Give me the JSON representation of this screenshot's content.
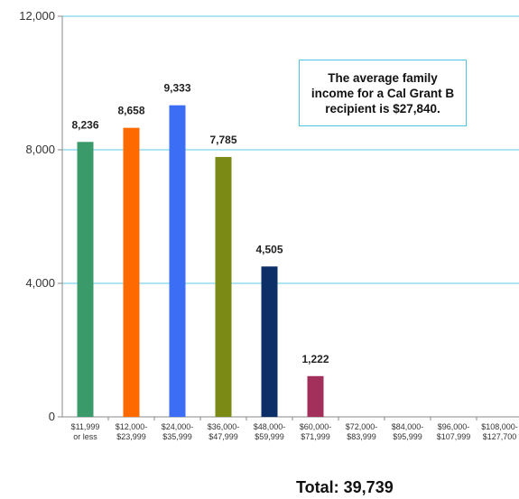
{
  "chart_data": {
    "type": "bar",
    "categories": [
      "$11,999\nor less",
      "$12,000-\n$23,999",
      "$24,000-\n$35,999",
      "$36,000-\n$47,999",
      "$48,000-\n$59,999",
      "$60,000-\n$71,999",
      "$72,000-\n$83,999",
      "$84,000-\n$95,999",
      "$96,000-\n$107,999",
      "$108,000-\n$127,700"
    ],
    "values": [
      8236,
      8658,
      9333,
      7785,
      4505,
      1222,
      0,
      0,
      0,
      0
    ],
    "data_labels": [
      "8,236",
      "8,658",
      "9,333",
      "7,785",
      "4,505",
      "1,222",
      "",
      "",
      "",
      ""
    ],
    "colors": [
      "#3a9a6a",
      "#ff6a00",
      "#3b6ef5",
      "#7a8a14",
      "#0b2f66",
      "#a2305a",
      "#cccccc",
      "#cccccc",
      "#cccccc",
      "#cccccc"
    ],
    "ylim": [
      0,
      12000
    ],
    "yticks": [
      0,
      4000,
      8000,
      12000
    ],
    "ytick_labels": [
      "0",
      "4,000",
      "8,000",
      "12,000"
    ],
    "grid": true,
    "grid_color": "#7fd3ef",
    "title": "",
    "xlabel": "",
    "ylabel": "",
    "annotation": "The average family\nincome for a Cal Grant B\nrecipient is $27,840.",
    "total_label": "Total:  39,739"
  }
}
